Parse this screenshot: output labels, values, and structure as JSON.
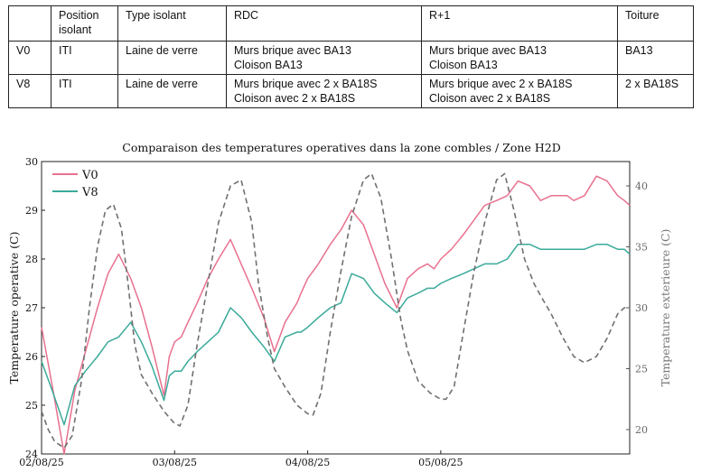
{
  "table": {
    "headers": [
      "",
      "Position isolant",
      "Type isolant",
      "RDC",
      "R+1",
      "Toiture"
    ],
    "rows": [
      [
        "V0",
        "ITI",
        "Laine de verre",
        "Murs brique avec BA13\nCloison BA13",
        "Murs brique avec BA13\nCloison BA13",
        "BA13"
      ],
      [
        "V8",
        "ITI",
        "Laine de verre",
        "Murs brique avec 2 x BA18S\nCloison avec 2 x BA18S",
        "Murs brique avec 2 x BA18S\nCloison avec 2 x BA18S",
        "2 x BA18S"
      ]
    ]
  },
  "chart_data": {
    "type": "line",
    "title": "Comparaison des temperatures operatives dans la zone combles / Zone H2D",
    "xlabel": "",
    "ylabel": "Temperature operative (C)",
    "y2label": "Temperature exterieure (C)",
    "x_unit": "days since 02/08/25 00:00",
    "xlim": [
      0,
      4.42
    ],
    "ylim": [
      24,
      30
    ],
    "y2lim": [
      18,
      42
    ],
    "xticks": [
      {
        "value": 0,
        "label": "02/08/25"
      },
      {
        "value": 1,
        "label": "03/08/25"
      },
      {
        "value": 2,
        "label": "04/08/25"
      },
      {
        "value": 3,
        "label": "05/08/25"
      }
    ],
    "yticks": [
      24,
      25,
      26,
      27,
      28,
      29,
      30
    ],
    "y2ticks": [
      20,
      25,
      30,
      35,
      40
    ],
    "legend_position": "top-left",
    "series": [
      {
        "name": "V0",
        "axis": "left",
        "color": "#e8718f",
        "style": "solid",
        "x": [
          0,
          0.08,
          0.17,
          0.25,
          0.33,
          0.42,
          0.5,
          0.58,
          0.67,
          0.75,
          0.83,
          0.92,
          0.96,
          1.0,
          1.05,
          1.1,
          1.17,
          1.25,
          1.33,
          1.42,
          1.5,
          1.58,
          1.67,
          1.75,
          1.83,
          1.92,
          1.95,
          2.0,
          2.08,
          2.17,
          2.25,
          2.33,
          2.42,
          2.5,
          2.58,
          2.67,
          2.75,
          2.83,
          2.9,
          2.95,
          3.0,
          3.08,
          3.17,
          3.25,
          3.33,
          3.42,
          3.5,
          3.58,
          3.67,
          3.75,
          3.83,
          3.9,
          3.95,
          4.0,
          4.08,
          4.17,
          4.25,
          4.33,
          4.38,
          4.42
        ],
        "y": [
          26.6,
          25.4,
          24.0,
          25.3,
          26.1,
          27.0,
          27.7,
          28.1,
          27.6,
          27.0,
          26.2,
          25.2,
          26.0,
          26.3,
          26.4,
          26.7,
          27.1,
          27.6,
          28.0,
          28.4,
          27.9,
          27.4,
          26.8,
          26.1,
          26.7,
          27.1,
          27.3,
          27.6,
          27.9,
          28.3,
          28.6,
          29.0,
          28.7,
          28.1,
          27.5,
          27.0,
          27.6,
          27.8,
          27.9,
          27.8,
          28.0,
          28.2,
          28.5,
          28.8,
          29.1,
          29.2,
          29.3,
          29.6,
          29.5,
          29.2,
          29.3,
          29.3,
          29.3,
          29.2,
          29.3,
          29.7,
          29.6,
          29.3,
          29.2,
          29.1
        ]
      },
      {
        "name": "V8",
        "axis": "left",
        "color": "#3aaa9a",
        "style": "solid",
        "x": [
          0,
          0.08,
          0.17,
          0.25,
          0.33,
          0.42,
          0.5,
          0.58,
          0.67,
          0.75,
          0.83,
          0.92,
          0.96,
          1.0,
          1.05,
          1.1,
          1.17,
          1.25,
          1.33,
          1.42,
          1.5,
          1.58,
          1.67,
          1.75,
          1.83,
          1.92,
          1.95,
          2.0,
          2.08,
          2.17,
          2.25,
          2.33,
          2.42,
          2.5,
          2.58,
          2.67,
          2.75,
          2.83,
          2.9,
          2.95,
          3.0,
          3.08,
          3.17,
          3.25,
          3.33,
          3.42,
          3.5,
          3.58,
          3.67,
          3.75,
          3.83,
          3.9,
          3.95,
          4.0,
          4.08,
          4.17,
          4.25,
          4.33,
          4.38,
          4.42
        ],
        "y": [
          25.9,
          25.3,
          24.6,
          25.4,
          25.7,
          26.0,
          26.3,
          26.4,
          26.7,
          26.3,
          25.8,
          25.1,
          25.6,
          25.7,
          25.7,
          25.9,
          26.1,
          26.3,
          26.5,
          27.0,
          26.8,
          26.5,
          26.2,
          25.9,
          26.4,
          26.5,
          26.5,
          26.6,
          26.8,
          27.0,
          27.1,
          27.7,
          27.6,
          27.3,
          27.1,
          26.9,
          27.2,
          27.3,
          27.4,
          27.4,
          27.5,
          27.6,
          27.7,
          27.8,
          27.9,
          27.9,
          28.0,
          28.3,
          28.3,
          28.2,
          28.2,
          28.2,
          28.2,
          28.2,
          28.2,
          28.3,
          28.3,
          28.2,
          28.2,
          28.1
        ]
      },
      {
        "name": "Temperature exterieure",
        "axis": "right",
        "color": "#707070",
        "style": "dashed",
        "x": [
          0,
          0.05,
          0.1,
          0.17,
          0.23,
          0.3,
          0.36,
          0.42,
          0.48,
          0.54,
          0.6,
          0.65,
          0.7,
          0.75,
          0.83,
          0.92,
          1.0,
          1.04,
          1.1,
          1.17,
          1.25,
          1.33,
          1.42,
          1.5,
          1.58,
          1.63,
          1.7,
          1.75,
          1.83,
          1.92,
          2.0,
          2.04,
          2.1,
          2.17,
          2.25,
          2.33,
          2.42,
          2.48,
          2.55,
          2.63,
          2.7,
          2.75,
          2.83,
          2.92,
          3.0,
          3.04,
          3.1,
          3.17,
          3.25,
          3.33,
          3.42,
          3.48,
          3.55,
          3.63,
          3.7,
          3.75,
          3.83,
          3.92,
          4.0,
          4.08,
          4.17,
          4.25,
          4.33,
          4.38,
          4.42
        ],
        "y": [
          21.5,
          20.0,
          19.0,
          18.5,
          19.5,
          24.0,
          30.0,
          35.0,
          38.0,
          38.5,
          36.5,
          32.0,
          27.0,
          24.5,
          23.0,
          21.5,
          20.5,
          20.3,
          22.0,
          27.0,
          32.0,
          37.0,
          40.0,
          40.5,
          37.0,
          32.0,
          27.5,
          25.0,
          23.5,
          22.0,
          21.3,
          21.2,
          23.0,
          28.0,
          33.0,
          37.5,
          40.5,
          41.0,
          39.0,
          34.0,
          29.0,
          26.5,
          24.0,
          23.0,
          22.5,
          22.5,
          23.5,
          28.0,
          33.0,
          37.0,
          40.5,
          41.0,
          38.0,
          34.0,
          32.0,
          31.0,
          29.5,
          27.5,
          26.0,
          25.5,
          26.0,
          27.5,
          29.5,
          30.0,
          30.0
        ]
      }
    ]
  }
}
